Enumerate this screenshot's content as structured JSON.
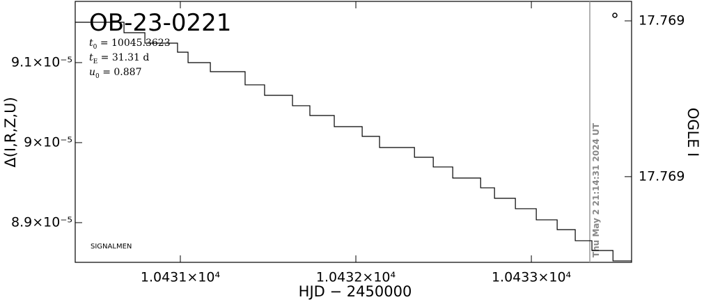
{
  "chart_data": {
    "type": "line",
    "step": "post",
    "title": "OB-23-0221",
    "parameters": [
      {
        "symbol": "t",
        "sub": "0",
        "text": " = 10045.3623"
      },
      {
        "symbol": "t",
        "sub": "E",
        "text": " = 31.31  d"
      },
      {
        "symbol": "u",
        "sub": "0",
        "text": " = 0.887"
      }
    ],
    "corner_label": "SIGNALMEN",
    "now_label": "Thu May  2 21:14:31 2024 UT",
    "x_label": "HJD − 2450000",
    "y_label": "Δ(I,R,Z,U)",
    "y2_label": "OGLE I",
    "color": "#000000",
    "xlim": [
      10430.401,
      10433.571
    ],
    "xticks": [
      {
        "value": 10431,
        "label": "1.0431×10⁴"
      },
      {
        "value": 10432,
        "label": "1.0432×10⁴"
      },
      {
        "value": 10433,
        "label": "1.0433×10⁴"
      }
    ],
    "ylim": [
      8.8504e-05,
      9.1765e-05
    ],
    "yticks": [
      {
        "value": 8.9e-05,
        "label": "8.9×10⁻⁵"
      },
      {
        "value": 9e-05,
        "label": "9×10⁻⁵"
      },
      {
        "value": 9.1e-05,
        "label": "9.1×10⁻⁵"
      }
    ],
    "y2lim": [
      17.76942,
      17.76875
    ],
    "y2ticks": [
      {
        "value": 17.7688,
        "label": "17.769"
      },
      {
        "value": 17.7692,
        "label": "17.769"
      }
    ],
    "x": [
      10430.401,
      10430.679,
      10430.798,
      10430.984,
      10431.044,
      10431.171,
      10431.369,
      10431.48,
      10431.639,
      10431.738,
      10431.877,
      10432.036,
      10432.135,
      10432.334,
      10432.441,
      10432.552,
      10432.711,
      10432.79,
      10432.909,
      10433.028,
      10433.147,
      10433.25,
      10433.345,
      10433.465
    ],
    "values": [
      9.1504e-05,
      9.1374e-05,
      9.1243e-05,
      9.113e-05,
      9.1e-05,
      9.0887e-05,
      9.0722e-05,
      9.0591e-05,
      9.0461e-05,
      9.0339e-05,
      9.02e-05,
      9.0078e-05,
      8.9939e-05,
      8.9817e-05,
      8.9696e-05,
      8.9557e-05,
      8.9435e-05,
      8.9304e-05,
      8.9174e-05,
      8.9035e-05,
      8.8913e-05,
      8.8774e-05,
      8.8652e-05,
      8.8522e-05
    ]
  }
}
